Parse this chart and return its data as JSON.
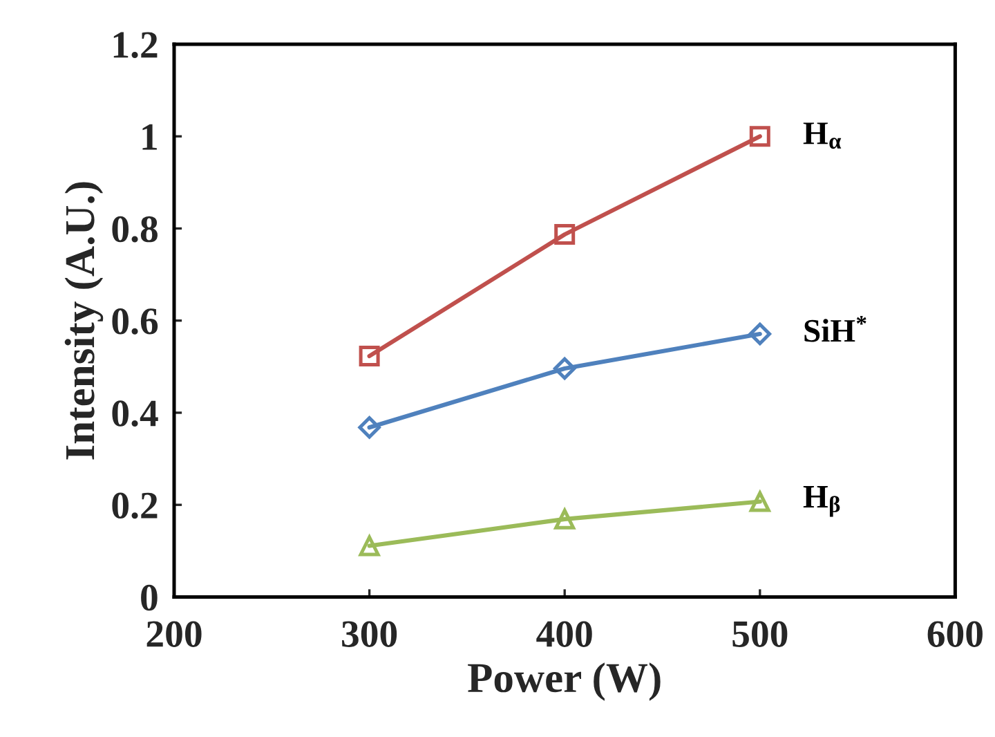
{
  "chart_data": {
    "type": "line",
    "xlabel": "Power (W)",
    "ylabel": "Intensity (A.U.)",
    "x": [
      300,
      400,
      500
    ],
    "series": [
      {
        "name": "H$_{α}$",
        "color": "#c0504d",
        "marker": "square",
        "values": [
          0.523,
          0.787,
          1.0
        ]
      },
      {
        "name": "SiH$^{*}$",
        "color": "#4f81bd",
        "marker": "diamond",
        "values": [
          0.368,
          0.496,
          0.571
        ]
      },
      {
        "name": "H$_{β}$",
        "color": "#9bbb59",
        "marker": "triangle",
        "values": [
          0.111,
          0.169,
          0.207
        ]
      }
    ],
    "xlim": [
      200,
      600
    ],
    "xticks": [
      200,
      300,
      400,
      500,
      600
    ],
    "ylim": [
      0,
      1.2
    ],
    "yticks": [
      0,
      0.2,
      0.4,
      0.6,
      0.8,
      {
        "value": 1.0,
        "label": "1"
      },
      1.2
    ],
    "grid": false,
    "legend": false
  }
}
